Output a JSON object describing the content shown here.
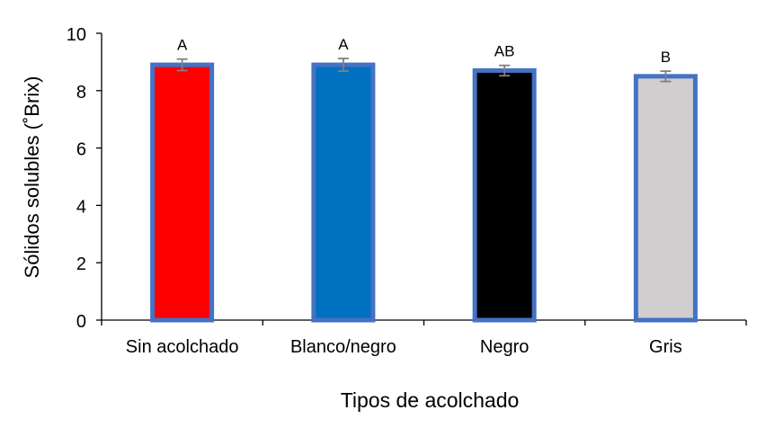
{
  "chart_data": {
    "type": "bar",
    "xlabel": "Tipos de acolchado",
    "ylabel": "Sólidos solubles (˚Brix)",
    "ylim": [
      0,
      10
    ],
    "yticks": [
      0,
      2,
      4,
      6,
      8,
      10
    ],
    "grid": false,
    "legend": "none",
    "categories": [
      "Sin acolchado",
      "Blanco/negro",
      "Negro",
      "Gris"
    ],
    "values": [
      8.9,
      8.9,
      8.7,
      8.5
    ],
    "errors": [
      0.2,
      0.22,
      0.18,
      0.18
    ],
    "significance": [
      "A",
      "A",
      "AB",
      "B"
    ],
    "colors": [
      "#ff0000",
      "#0070c0",
      "#000000",
      "#d0cece"
    ],
    "bar_border_color": "#4472c4",
    "error_bar_color": "#808080",
    "axis_color": "#000000"
  }
}
